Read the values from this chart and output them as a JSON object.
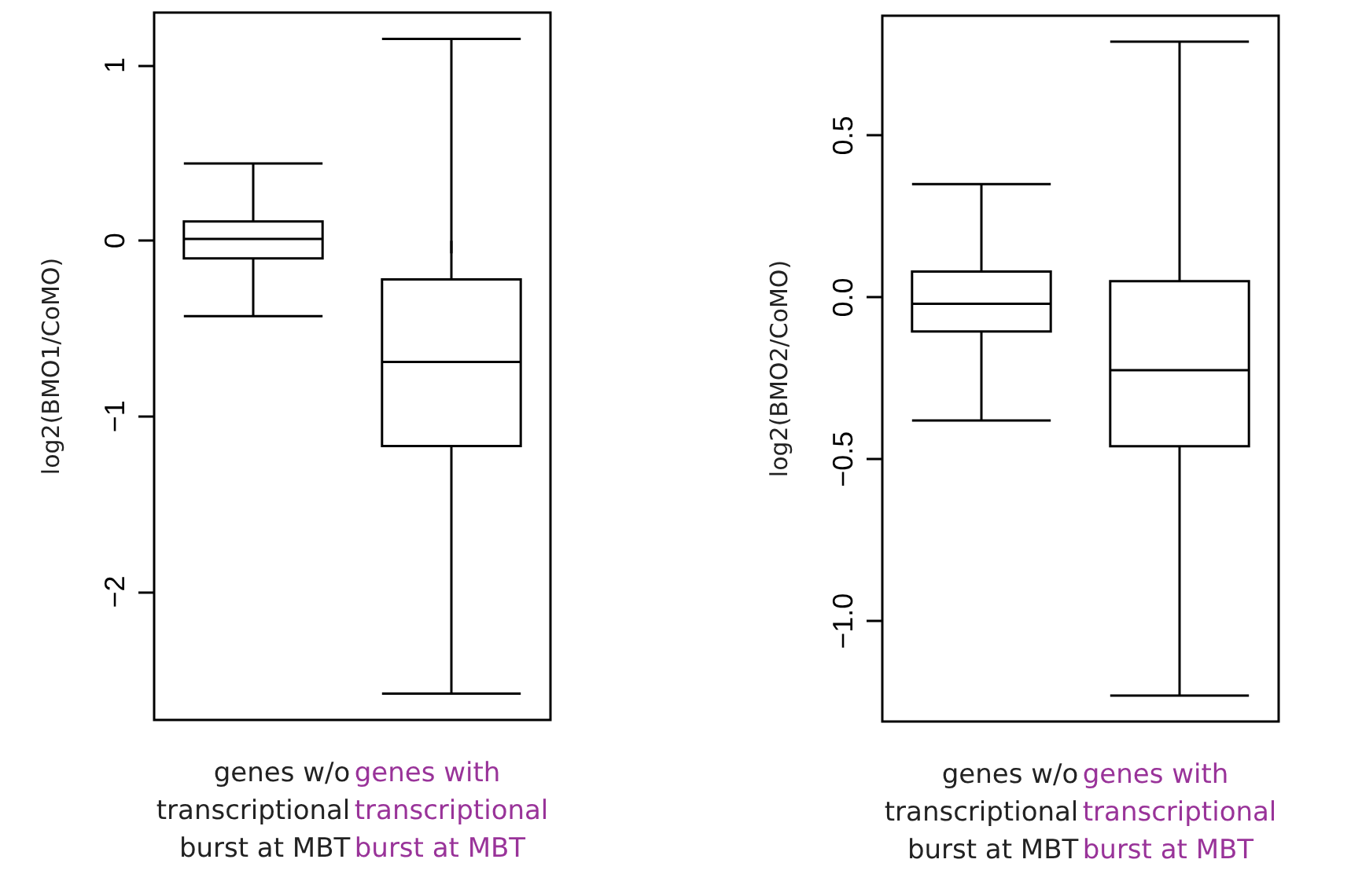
{
  "chart_data": [
    {
      "type": "box",
      "ylabel": "log2(BMO1/CoMO)",
      "categories": [
        "genes w/o\ntranscriptional\nburst at MBT",
        "genes with\ntranscriptional\nburst at MBT"
      ],
      "boxes": [
        {
          "low": -0.43,
          "q1": -0.1,
          "median": 0.01,
          "q3": 0.11,
          "high": 0.44
        },
        {
          "low": -2.58,
          "q1": -1.17,
          "median": -0.69,
          "q3": -0.22,
          "high": 1.15
        }
      ],
      "ylim": [
        -2.73,
        1.3
      ],
      "yticks": [
        {
          "value": -2,
          "label": "−2"
        },
        {
          "value": -1,
          "label": "−1"
        },
        0,
        1
      ],
      "grid": false
    },
    {
      "type": "box",
      "ylabel": "log2(BMO2/CoMO)",
      "categories": [
        "genes w/o\ntranscriptional\nburst at MBT",
        "genes with\ntranscriptional\nburst at MBT"
      ],
      "boxes": [
        {
          "low": -0.38,
          "q1": -0.105,
          "median": -0.02,
          "q3": 0.08,
          "high": 0.35
        },
        {
          "low": -1.23,
          "q1": -0.46,
          "median": -0.225,
          "q3": 0.05,
          "high": 0.79
        }
      ],
      "ylim": [
        -1.31,
        0.87
      ],
      "yticks": [
        {
          "value": -1.0,
          "label": "−1.0"
        },
        {
          "value": -0.5,
          "label": "−0.5"
        },
        {
          "value": 0.0,
          "label": "0.0"
        },
        {
          "value": 0.5,
          "label": "0.5"
        }
      ],
      "grid": false
    }
  ]
}
